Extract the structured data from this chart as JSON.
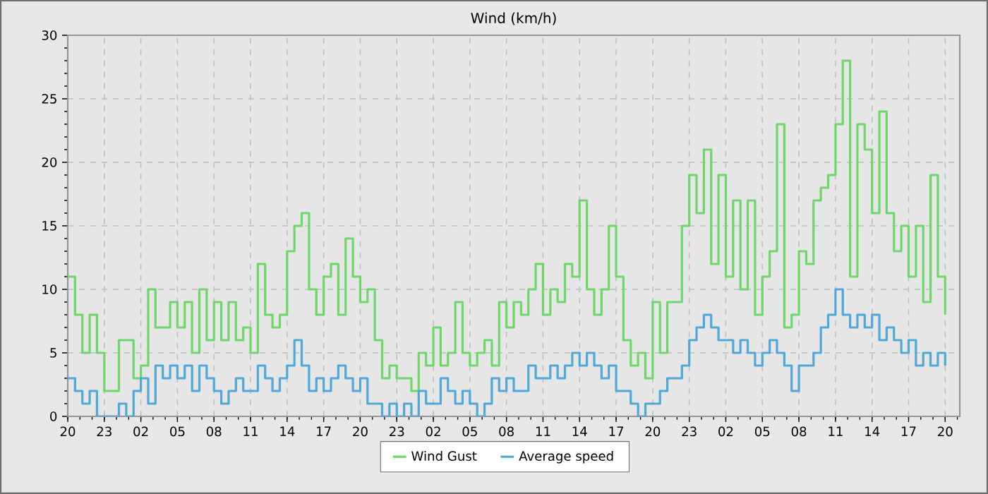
{
  "chart_data": {
    "type": "step",
    "title": "Wind (km/h)",
    "categories": [
      "20",
      null,
      null,
      null,
      null,
      "23",
      null,
      null,
      null,
      null,
      "02",
      null,
      null,
      null,
      null,
      "05",
      null,
      null,
      null,
      null,
      "08",
      null,
      null,
      null,
      null,
      "11",
      null,
      null,
      null,
      null,
      "14",
      null,
      null,
      null,
      null,
      "17",
      null,
      null,
      null,
      null,
      "20",
      null,
      null,
      null,
      null,
      "23",
      null,
      null,
      null,
      null,
      "02",
      null,
      null,
      null,
      null,
      "05",
      null,
      null,
      null,
      null,
      "08",
      null,
      null,
      null,
      null,
      "11",
      null,
      null,
      null,
      null,
      "14",
      null,
      null,
      null,
      null,
      "17",
      null,
      null,
      null,
      null,
      "20",
      null,
      null,
      null,
      null,
      "23",
      null,
      null,
      null,
      null,
      "02",
      null,
      null,
      null,
      null,
      "05",
      null,
      null,
      null,
      null,
      "08",
      null,
      null,
      null,
      null,
      "11",
      null,
      null,
      null,
      null,
      "14",
      null,
      null,
      null,
      null,
      "17",
      null,
      null,
      null,
      null,
      "20"
    ],
    "series": [
      {
        "name": "Wind Gust",
        "color": "#6fd66a",
        "values": [
          11,
          8,
          5,
          8,
          5,
          2,
          2,
          6,
          6,
          3,
          4,
          10,
          7,
          7,
          9,
          7,
          9,
          5,
          10,
          6,
          9,
          6,
          9,
          6,
          7,
          5,
          12,
          8,
          7,
          8,
          13,
          15,
          16,
          10,
          8,
          11,
          12,
          8,
          14,
          11,
          9,
          10,
          6,
          3,
          4,
          3,
          3,
          2,
          5,
          4,
          7,
          4,
          5,
          9,
          5,
          4,
          5,
          6,
          4,
          9,
          7,
          9,
          8,
          10,
          12,
          8,
          10,
          9,
          12,
          11,
          17,
          10,
          8,
          10,
          15,
          11,
          6,
          4,
          5,
          3,
          9,
          5,
          9,
          9,
          15,
          19,
          16,
          21,
          12,
          19,
          11,
          17,
          10,
          17,
          8,
          11,
          13,
          23,
          7,
          8,
          13,
          12,
          17,
          18,
          19,
          23,
          28,
          11,
          23,
          21,
          16,
          24,
          16,
          13,
          15,
          11,
          15,
          9,
          19,
          11,
          8
        ]
      },
      {
        "name": "Average speed",
        "color": "#4fa8d8",
        "values": [
          3,
          2,
          1,
          2,
          0,
          0,
          0,
          1,
          0,
          2,
          3,
          1,
          4,
          3,
          4,
          3,
          4,
          2,
          4,
          3,
          2,
          1,
          2,
          3,
          2,
          2,
          4,
          3,
          2,
          3,
          4,
          6,
          4,
          2,
          3,
          2,
          3,
          4,
          3,
          2,
          3,
          1,
          1,
          0,
          1,
          0,
          1,
          0,
          2,
          1,
          1,
          3,
          2,
          1,
          2,
          1,
          0,
          1,
          3,
          2,
          3,
          2,
          2,
          4,
          3,
          3,
          4,
          3,
          4,
          5,
          4,
          5,
          4,
          3,
          4,
          2,
          2,
          1,
          0,
          1,
          1,
          2,
          3,
          3,
          4,
          6,
          7,
          8,
          7,
          6,
          6,
          5,
          6,
          5,
          4,
          5,
          6,
          5,
          4,
          2,
          4,
          4,
          5,
          7,
          8,
          10,
          8,
          7,
          8,
          7,
          8,
          6,
          7,
          6,
          5,
          6,
          4,
          5,
          4,
          5,
          4
        ]
      }
    ],
    "ylim": [
      0,
      30
    ],
    "yticks": [
      0,
      5,
      10,
      15,
      20,
      25,
      30
    ],
    "grid": true,
    "legend": "bottom",
    "marker": "none",
    "line_style": "solid"
  }
}
